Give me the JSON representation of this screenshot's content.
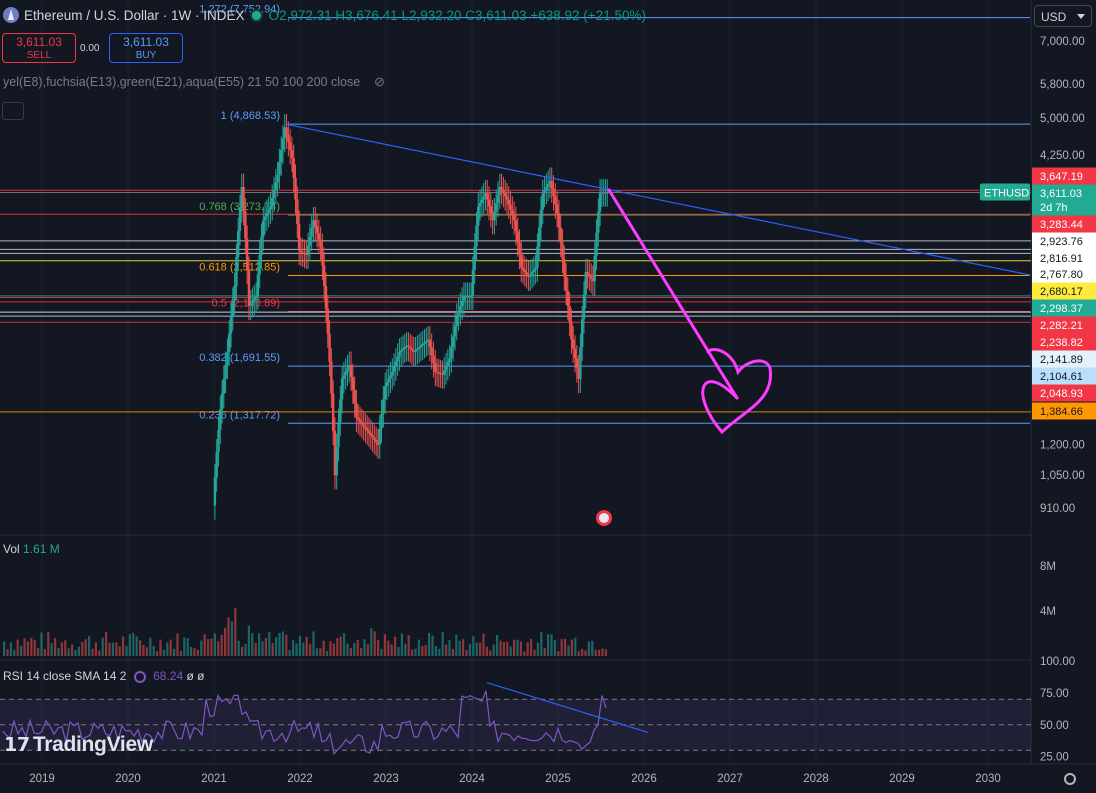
{
  "header": {
    "symbol_title": "Ethereum / U.S. Dollar · 1W · INDEX",
    "open": "O2,972.31",
    "high": "H3,676.41",
    "low": "L2,932.20",
    "close": "C3,611.03",
    "change": "+638.92 (+21.50%)"
  },
  "trade": {
    "sell_price": "3,611.03",
    "sell_label": "SELL",
    "spread": "0.00",
    "buy_price": "3,611.03",
    "buy_label": "BUY"
  },
  "indicator_line": "yel(E8),fuchsia(E13),green(E21),aqua(E55) 21 50 100 200 close",
  "currency_button": "USD",
  "volume": {
    "label": "Vol",
    "value": "1.61 M"
  },
  "rsi": {
    "label": "RSI 14 close SMA 14 2",
    "value": "68.24",
    "extra": "ø ø"
  },
  "branding": "TradingView",
  "colors": {
    "background": "#131722",
    "up": "#26a69a",
    "down": "#ef5350",
    "trendline": "#2962ff",
    "annotation_pink": "#ff3bff",
    "rsi": "#7e57c2"
  },
  "chart_data": [
    {
      "type": "candlestick",
      "symbol": "ETHUSD",
      "title": "Ethereum / U.S. Dollar · 1W · INDEX",
      "x_axis_labels": [
        "2019",
        "2020",
        "2021",
        "2022",
        "2023",
        "2024",
        "2025",
        "2026",
        "2027",
        "2028",
        "2029",
        "2030"
      ],
      "y_axis_labels": [
        "7,000.00",
        "5,800.00",
        "5,000.00",
        "4,250.00",
        "1,200.00",
        "1,050.00",
        "910.00"
      ],
      "y_scale": "log",
      "ylim": [
        870,
        7700
      ],
      "price_series": {
        "x": [
          "2021-01",
          "2021-02",
          "2021-03",
          "2021-04",
          "2021-05",
          "2021-06",
          "2021-07",
          "2021-08",
          "2021-09",
          "2021-10",
          "2021-11",
          "2021-12",
          "2022-01",
          "2022-02",
          "2022-03",
          "2022-04",
          "2022-05",
          "2022-06",
          "2022-07",
          "2022-08",
          "2022-09",
          "2022-10",
          "2022-11",
          "2022-12",
          "2023-01",
          "2023-02",
          "2023-03",
          "2023-04",
          "2023-05",
          "2023-06",
          "2023-07",
          "2023-08",
          "2023-09",
          "2023-10",
          "2023-11",
          "2023-12",
          "2024-01",
          "2024-02",
          "2024-03",
          "2024-04",
          "2024-05",
          "2024-06",
          "2024-07",
          "2024-08",
          "2024-09",
          "2024-10",
          "2024-11",
          "2024-12",
          "2025-01",
          "2025-02",
          "2025-03",
          "2025-04",
          "2025-05",
          "2025-06",
          "2025-07"
        ],
        "y": [
          920,
          1400,
          1800,
          2400,
          3700,
          2200,
          2300,
          3200,
          3400,
          3900,
          4800,
          4200,
          2800,
          2750,
          3200,
          2850,
          1950,
          1050,
          1600,
          1700,
          1350,
          1300,
          1250,
          1200,
          1550,
          1650,
          1800,
          1850,
          1800,
          1850,
          1900,
          1650,
          1630,
          1750,
          2100,
          2300,
          2300,
          3400,
          3600,
          3200,
          3700,
          3500,
          3200,
          2600,
          2500,
          2600,
          3600,
          3800,
          3300,
          2500,
          1900,
          1600,
          2550,
          2450,
          3611
        ]
      },
      "last_price": "3,611.03",
      "last_price_label": "ETHUSD",
      "countdown": "2d 7h",
      "fibonacci_levels": [
        {
          "label": "1.272 (7,752.94)",
          "color": "#5b9cf6"
        },
        {
          "label": "1 (4,868.53)",
          "color": "#5b9cf6"
        },
        {
          "label": "0.768 (3,273.74)",
          "color": "#4caf50"
        },
        {
          "label": "0.618 (2,512.85)",
          "color": "#ff9800"
        },
        {
          "label": "0.5 (2,146.89)",
          "color": "#f23645"
        },
        {
          "label": "0.382 (1,691.55)",
          "color": "#5b9cf6"
        },
        {
          "label": "0.236 (1,317.72)",
          "color": "#5b9cf6"
        }
      ],
      "price_tags": [
        {
          "value": "3,647.19",
          "bg": "#f23645",
          "fg": "#ffffff"
        },
        {
          "value": "3,611.03",
          "bg": "#22ab94",
          "fg": "#ffffff"
        },
        {
          "value": "2d 7h",
          "bg": "#22ab94",
          "fg": "#ffffff"
        },
        {
          "value": "3,283.44",
          "bg": "#f23645",
          "fg": "#ffffff"
        },
        {
          "value": "2,923.76",
          "bg": "#ffffff",
          "fg": "#131722"
        },
        {
          "value": "2,816.91",
          "bg": "#ffffff",
          "fg": "#131722"
        },
        {
          "value": "2,767.80",
          "bg": "#ffffff",
          "fg": "#131722"
        },
        {
          "value": "2,680.17",
          "bg": "#ffeb3b",
          "fg": "#131722"
        },
        {
          "value": "2,298.37",
          "bg": "#22ab94",
          "fg": "#ffffff"
        },
        {
          "value": "2,282.21",
          "bg": "#f23645",
          "fg": "#ffffff"
        },
        {
          "value": "2,238.82",
          "bg": "#f23645",
          "fg": "#ffffff"
        },
        {
          "value": "2,141.89",
          "bg": "#e3f2fd",
          "fg": "#131722"
        },
        {
          "value": "2,104.61",
          "bg": "#bbdefb",
          "fg": "#131722"
        },
        {
          "value": "2,048.93",
          "bg": "#f23645",
          "fg": "#ffffff"
        },
        {
          "value": "1,384.66",
          "bg": "#ff9800",
          "fg": "#131722"
        }
      ]
    },
    {
      "type": "bar",
      "title": "Vol",
      "y_axis_labels": [
        "8M",
        "4M"
      ],
      "current": "1.61 M"
    },
    {
      "type": "line",
      "title": "RSI 14 close SMA 14 2",
      "y_axis_labels": [
        "100.00",
        "75.00",
        "50.00",
        "25.00"
      ],
      "ylim": [
        20,
        100
      ],
      "bands": [
        30,
        50,
        70
      ],
      "current": "68.24"
    }
  ]
}
